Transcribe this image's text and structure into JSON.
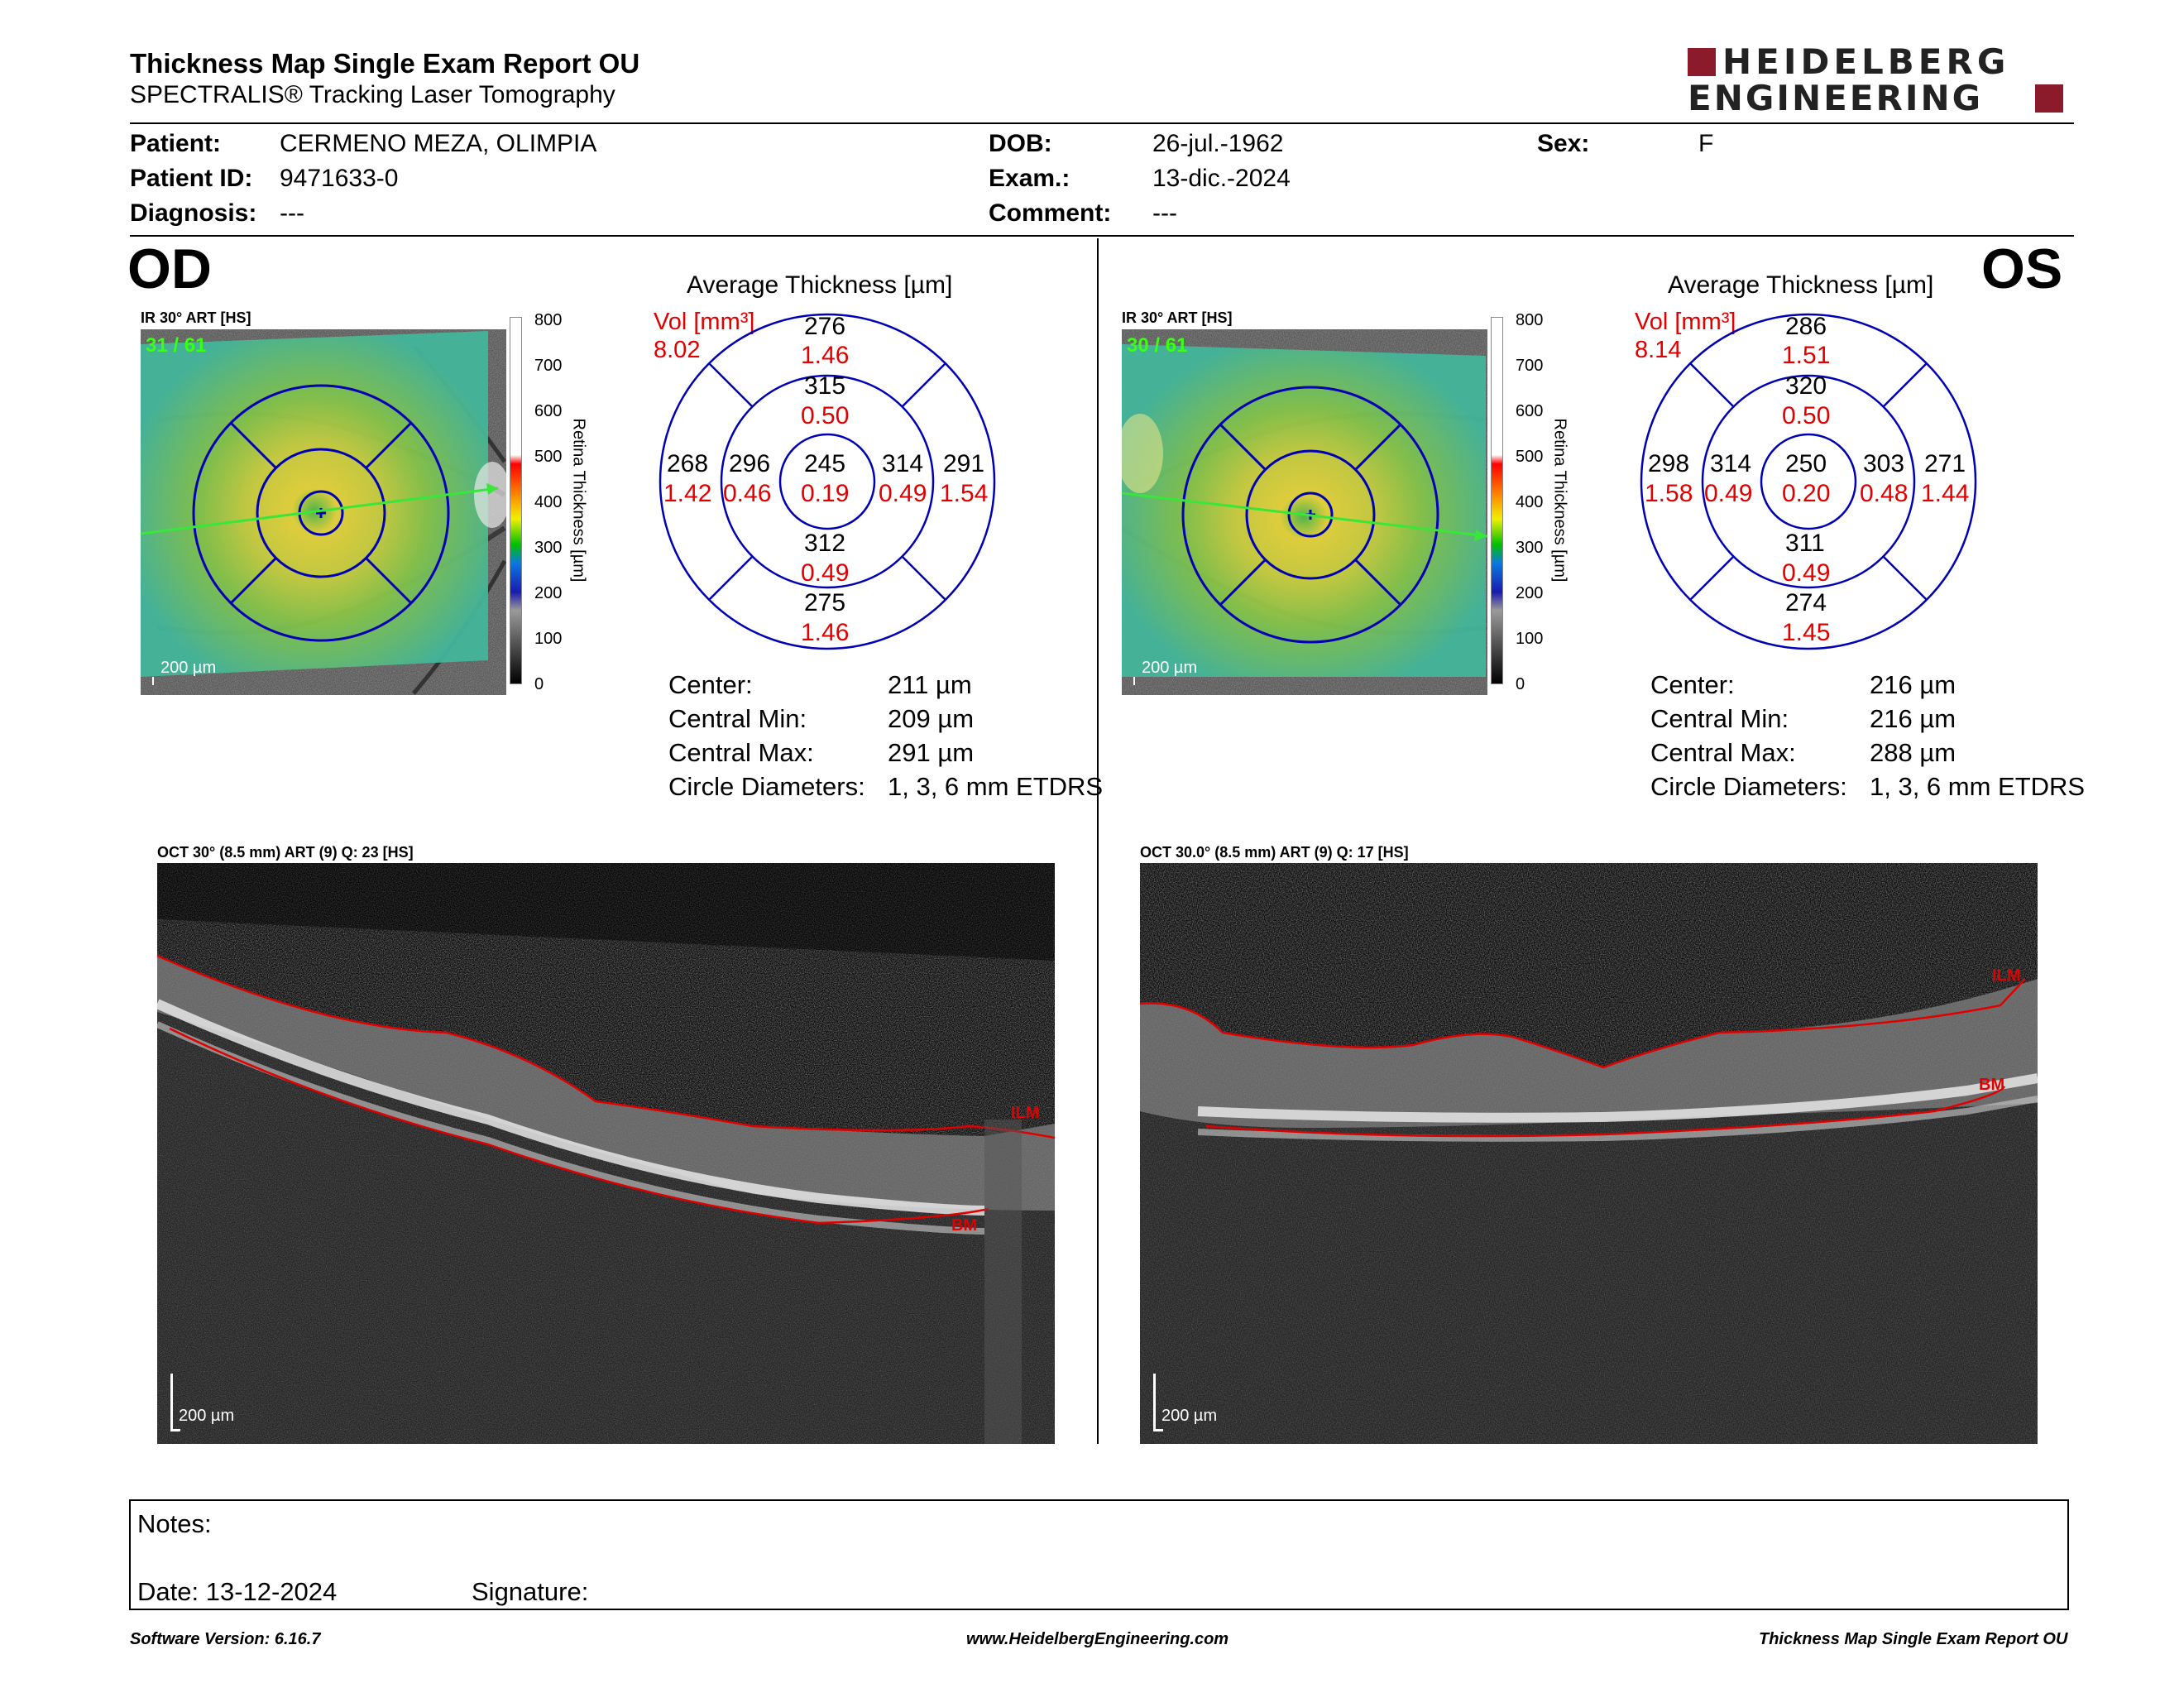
{
  "header": {
    "title": "Thickness Map Single Exam Report OU",
    "subtitle": "SPECTRALIS® Tracking Laser Tomography",
    "logo_line1": "HEIDELBERG",
    "logo_line2": "ENGINEERING"
  },
  "patient": {
    "patient_label": "Patient:",
    "patient_value": "CERMENO MEZA, OLIMPIA",
    "id_label": "Patient ID:",
    "id_value": "9471633-0",
    "diagnosis_label": "Diagnosis:",
    "diagnosis_value": "---",
    "dob_label": "DOB:",
    "dob_value": "26-jul.-1962",
    "exam_label": "Exam.:",
    "exam_value": "13-dic.-2024",
    "comment_label": "Comment:",
    "comment_value": "---",
    "sex_label": "Sex:",
    "sex_value": "F"
  },
  "colorbar": {
    "ticks": [
      "800",
      "700",
      "600",
      "500",
      "400",
      "300",
      "200",
      "100",
      "0"
    ],
    "label": "Retina Thickness [µm]"
  },
  "od": {
    "eye": "OD",
    "ir_label": "IR 30° ART [HS]",
    "frame": "31 / 61",
    "scale": "200 µm",
    "avg_title": "Average Thickness [µm]",
    "vol_label": "Vol [mm³]",
    "vol_value": "8.02",
    "grid": {
      "center": {
        "t": "245",
        "v": "0.19"
      },
      "inner_sup": {
        "t": "315",
        "v": "0.50"
      },
      "inner_inf": {
        "t": "312",
        "v": "0.49"
      },
      "inner_left": {
        "t": "296",
        "v": "0.46"
      },
      "inner_right": {
        "t": "314",
        "v": "0.49"
      },
      "outer_sup": {
        "t": "276",
        "v": "1.46"
      },
      "outer_inf": {
        "t": "275",
        "v": "1.46"
      },
      "outer_left": {
        "t": "268",
        "v": "1.42"
      },
      "outer_right": {
        "t": "291",
        "v": "1.54"
      }
    },
    "stats": {
      "center_label": "Center:",
      "center_value": "211 µm",
      "min_label": "Central Min:",
      "min_value": "209 µm",
      "max_label": "Central Max:",
      "max_value": "291 µm",
      "diam_label": "Circle Diameters:",
      "diam_value": "1, 3, 6 mm ETDRS"
    },
    "oct_label": "OCT 30° (8.5 mm) ART (9) Q: 23 [HS]",
    "oct_scale": "200 µm",
    "ilm": "ILM",
    "bm": "BM"
  },
  "os": {
    "eye": "OS",
    "ir_label": "IR 30° ART [HS]",
    "frame": "30 / 61",
    "scale": "200 µm",
    "avg_title": "Average Thickness [µm]",
    "vol_label": "Vol [mm³]",
    "vol_value": "8.14",
    "grid": {
      "center": {
        "t": "250",
        "v": "0.20"
      },
      "inner_sup": {
        "t": "320",
        "v": "0.50"
      },
      "inner_inf": {
        "t": "311",
        "v": "0.49"
      },
      "inner_left": {
        "t": "314",
        "v": "0.49"
      },
      "inner_right": {
        "t": "303",
        "v": "0.48"
      },
      "outer_sup": {
        "t": "286",
        "v": "1.51"
      },
      "outer_inf": {
        "t": "274",
        "v": "1.45"
      },
      "outer_left": {
        "t": "298",
        "v": "1.58"
      },
      "outer_right": {
        "t": "271",
        "v": "1.44"
      }
    },
    "stats": {
      "center_label": "Center:",
      "center_value": "216 µm",
      "min_label": "Central Min:",
      "min_value": "216 µm",
      "max_label": "Central Max:",
      "max_value": "288 µm",
      "diam_label": "Circle Diameters:",
      "diam_value": "1, 3, 6 mm ETDRS"
    },
    "oct_label": "OCT 30.0° (8.5 mm) ART (9) Q: 17 [HS]",
    "oct_scale": "200 µm",
    "ilm": "ILM",
    "bm": "BM"
  },
  "notes": {
    "notes_label": "Notes:",
    "date_label": "Date: 13-12-2024",
    "signature_label": "Signature:"
  },
  "footer": {
    "software": "Software Version: 6.16.7",
    "website": "www.HeidelbergEngineering.com",
    "report": "Thickness Map Single Exam Report OU"
  },
  "colors": {
    "red": "#e00000",
    "logo_red": "#8b1a2b",
    "grid_blue": "#0000b4"
  }
}
